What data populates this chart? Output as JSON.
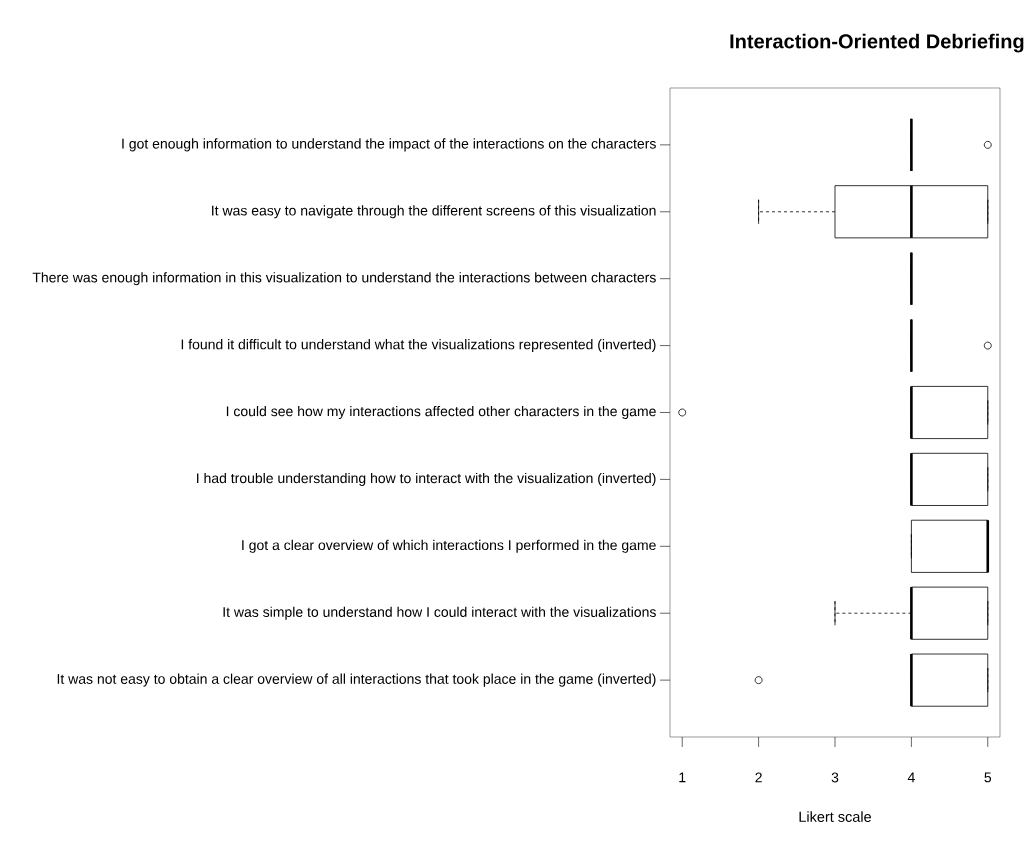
{
  "chart_data": {
    "type": "box",
    "title": "Interaction-Oriented Debriefing",
    "xlabel": "Likert scale",
    "orientation": "horizontal",
    "categories": [
      "I got enough information to understand the impact of the interactions on the characters",
      "It was easy to navigate through the different screens of this visualization",
      "There was enough information in this visualization to understand the interactions between characters",
      "I found it difficult to understand what the visualizations represented (inverted)",
      "I could see how my interactions affected other characters in the game",
      "I had trouble understanding how to interact with the visualization (inverted)",
      "I got a clear overview of which interactions I performed in the game",
      "It was simple to understand how I could interact with the visualizations",
      "It was not easy to obtain a clear overview of all interactions that took place in the game (inverted)"
    ],
    "boxes": [
      {
        "low": 4,
        "q1": 4,
        "median": 4,
        "q3": 4,
        "high": 4,
        "outliers": [
          5
        ]
      },
      {
        "low": 2,
        "q1": 3,
        "median": 4,
        "q3": 5,
        "high": 5
      },
      {
        "low": 4,
        "q1": 4,
        "median": 4,
        "q3": 4,
        "high": 4
      },
      {
        "low": 4,
        "q1": 4,
        "median": 4,
        "q3": 4,
        "high": 4,
        "outliers": [
          5
        ]
      },
      {
        "low": 4,
        "q1": 4,
        "median": 4,
        "q3": 5,
        "high": 5,
        "outliers": [
          1
        ]
      },
      {
        "low": 4,
        "q1": 4,
        "median": 4,
        "q3": 5,
        "high": 5
      },
      {
        "low": 4,
        "q1": 4,
        "median": 5,
        "q3": 5,
        "high": 5
      },
      {
        "low": 3,
        "q1": 4,
        "median": 4,
        "q3": 5,
        "high": 5
      },
      {
        "low": 4,
        "q1": 4,
        "median": 4,
        "q3": 5,
        "high": 5,
        "outliers": [
          2
        ]
      }
    ],
    "xlim": [
      0.84,
      5.16
    ],
    "xticks": [
      1,
      2,
      3,
      4,
      5
    ]
  }
}
